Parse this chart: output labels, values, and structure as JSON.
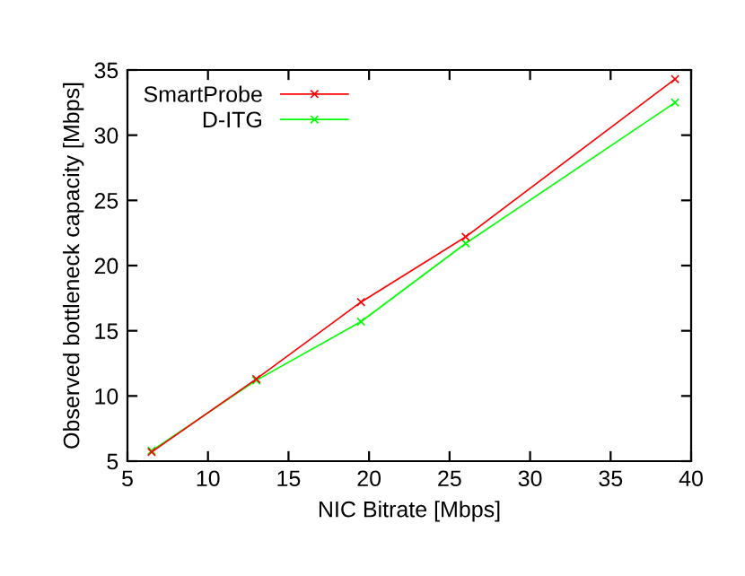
{
  "chart_data": {
    "type": "line",
    "xlabel": "NIC Bitrate [Mbps]",
    "ylabel": "Observed bottleneck capacity [Mbps]",
    "x": [
      6.5,
      13,
      19.5,
      26,
      39
    ],
    "series": [
      {
        "name": "SmartProbe",
        "color": "#ff0000",
        "values": [
          5.7,
          11.3,
          17.2,
          22.2,
          34.3
        ]
      },
      {
        "name": "D-ITG",
        "color": "#00ff00",
        "values": [
          5.8,
          11.2,
          15.7,
          21.7,
          32.5
        ]
      }
    ],
    "xlim": [
      5,
      40
    ],
    "xticks": [
      5,
      10,
      15,
      20,
      25,
      30,
      35,
      40
    ],
    "ylim": [
      5,
      35
    ],
    "yticks": [
      5,
      10,
      15,
      20,
      25,
      30,
      35
    ],
    "grid": false,
    "legend": "top left",
    "marker": "cross",
    "line_style": "solid"
  }
}
